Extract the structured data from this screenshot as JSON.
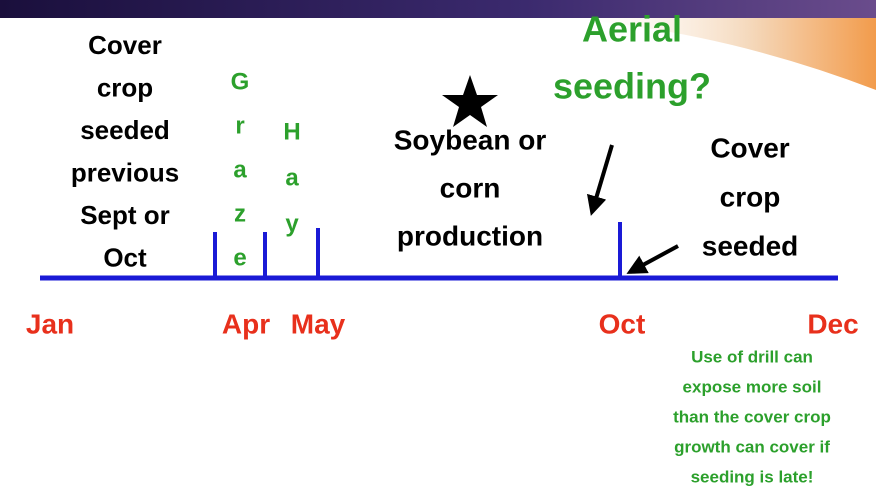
{
  "left_note": {
    "lines": [
      "Cover",
      "crop",
      "seeded",
      "previous",
      "Sept or",
      "Oct"
    ]
  },
  "graze": {
    "letters": [
      "G",
      "r",
      "a",
      "z",
      "e"
    ]
  },
  "hay": {
    "letters": [
      "H",
      "a",
      "y"
    ]
  },
  "aerial": {
    "lines": [
      "Aerial",
      "seeding?"
    ]
  },
  "production": {
    "lines": [
      "Soybean or",
      "corn",
      "production"
    ]
  },
  "right_note": {
    "lines": [
      "Cover",
      "crop",
      "seeded"
    ]
  },
  "months": [
    "Jan",
    "Apr",
    "May",
    "Oct",
    "Dec"
  ],
  "drill_note": {
    "lines": [
      "Use of drill can",
      "expose more soil",
      "than the cover crop",
      "growth can cover if",
      "seeding is late!"
    ]
  }
}
